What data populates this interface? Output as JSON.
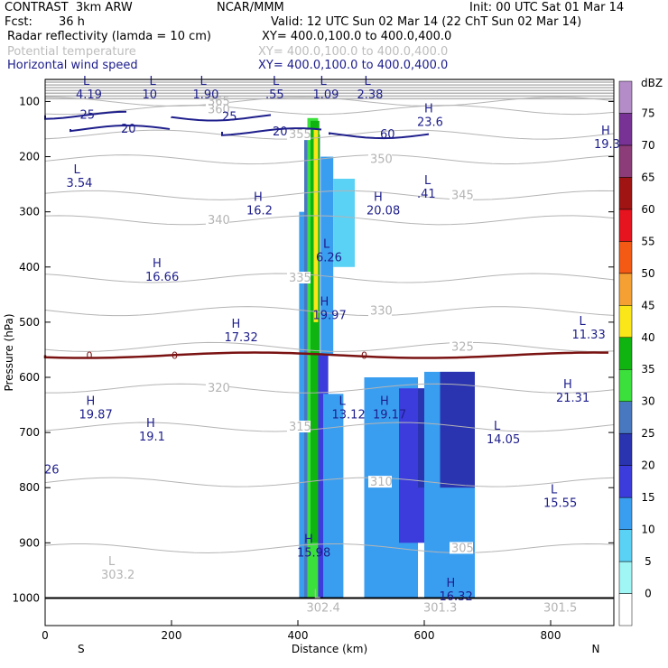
{
  "header": {
    "left_line1": "CONTRAST  3km ARW",
    "center_line1": "NCAR/MMM",
    "right_line1": "Init: 00 UTC Sat 01 Mar 14",
    "fcst_label": "Fcst:",
    "fcst_value": "36 h",
    "valid": "Valid: 12 UTC Sun 02 Mar 14 (22 ChT Sun 02 Mar 14)",
    "field1": "Radar reflectivity (lamda = 10 cm)",
    "field1_xy": "XY= 400.0,100.0 to 400.0,400.0",
    "field2": "Potential temperature",
    "field2_xy": "XY= 400.0,100.0 to 400.0,400.0",
    "field3": "Horizontal wind speed",
    "field3_xy": "XY= 400.0,100.0 to 400.0,400.0"
  },
  "colors": {
    "theta": "#b4b4b4",
    "wind": "#1e1e8c",
    "freezing": "#7a1212"
  },
  "chart_data": {
    "type": "heatmap",
    "title": "Radar reflectivity (lamda = 10 cm)",
    "xlabel": "Distance (km)",
    "ylabel": "Pressure (hPa)",
    "xlim": [
      0,
      900
    ],
    "ylim": [
      1050,
      60
    ],
    "x_ticks": [
      0,
      200,
      400,
      600,
      800
    ],
    "y_ticks": [
      100,
      200,
      300,
      400,
      500,
      600,
      700,
      800,
      900,
      1000
    ],
    "x_end_labels": {
      "left": "S",
      "right": "N"
    },
    "colorbar": {
      "unit": "dBZ",
      "levels": [
        0,
        5,
        10,
        15,
        20,
        25,
        30,
        35,
        40,
        45,
        50,
        55,
        60,
        65,
        70,
        75
      ],
      "colors": [
        "#ffffff",
        "#a0f5f5",
        "#5ad2f5",
        "#3a9ef0",
        "#3c3cdc",
        "#2a34b0",
        "#4878c0",
        "#3ce03c",
        "#10b410",
        "#fae619",
        "#f5a032",
        "#f55a14",
        "#e6141e",
        "#a01414",
        "#8c3c78",
        "#783296",
        "#b48cc8"
      ]
    },
    "cells": [
      {
        "x0": 402,
        "x1": 418,
        "p0": 1000,
        "p1": 300,
        "dbz": 12
      },
      {
        "x0": 410,
        "x1": 435,
        "p0": 1000,
        "p1": 160,
        "dbz": 25
      },
      {
        "x0": 415,
        "x1": 432,
        "p0": 1000,
        "p1": 130,
        "dbz": 30
      },
      {
        "x0": 420,
        "x1": 434,
        "p0": 900,
        "p1": 135,
        "dbz": 35
      },
      {
        "x0": 425,
        "x1": 432,
        "p0": 500,
        "p1": 150,
        "dbz": 40
      },
      {
        "x0": 436,
        "x1": 456,
        "p0": 560,
        "p1": 200,
        "dbz": 10
      },
      {
        "x0": 456,
        "x1": 490,
        "p0": 400,
        "p1": 240,
        "dbz": 8
      },
      {
        "x0": 432,
        "x1": 448,
        "p0": 1000,
        "p1": 560,
        "dbz": 15
      },
      {
        "x0": 440,
        "x1": 472,
        "p0": 1000,
        "p1": 630,
        "dbz": 12
      },
      {
        "x0": 505,
        "x1": 530,
        "p0": 1000,
        "p1": 600,
        "dbz": 10
      },
      {
        "x0": 530,
        "x1": 590,
        "p0": 1000,
        "p1": 600,
        "dbz": 12
      },
      {
        "x0": 560,
        "x1": 640,
        "p0": 900,
        "p1": 620,
        "dbz": 18
      },
      {
        "x0": 590,
        "x1": 620,
        "p0": 800,
        "p1": 620,
        "dbz": 22
      },
      {
        "x0": 600,
        "x1": 680,
        "p0": 1000,
        "p1": 590,
        "dbz": 10
      },
      {
        "x0": 625,
        "x1": 680,
        "p0": 800,
        "p1": 590,
        "dbz": 20
      }
    ],
    "freezing_level": {
      "label": "0",
      "pressure": 560
    },
    "theta_contours": [
      {
        "label": "360",
        "p": 115
      },
      {
        "label": "355",
        "p": 160
      },
      {
        "label": "350",
        "p": 205
      },
      {
        "label": "345",
        "p": 270
      },
      {
        "label": "340",
        "p": 315
      },
      {
        "label": "335",
        "p": 420
      },
      {
        "label": "330",
        "p": 480
      },
      {
        "label": "325",
        "p": 545
      },
      {
        "label": "320",
        "p": 620
      },
      {
        "label": "315",
        "p": 690
      },
      {
        "label": "310",
        "p": 790
      },
      {
        "label": "305",
        "p": 910
      },
      {
        "label": "365",
        "p": 100
      }
    ],
    "wind_labels": [
      {
        "label": "L",
        "value": "4.19",
        "x": 60,
        "p": 70
      },
      {
        "label": "L",
        "value": "10",
        "x": 165,
        "p": 70
      },
      {
        "label": "L",
        "value": "1.90",
        "x": 245,
        "p": 70
      },
      {
        "label": "L",
        "value": ".55",
        "x": 360,
        "p": 70
      },
      {
        "label": "L",
        "value": "1.09",
        "x": 435,
        "p": 70
      },
      {
        "label": "L",
        "value": "2.38",
        "x": 505,
        "p": 70
      },
      {
        "label": "H",
        "value": "23.6",
        "x": 600,
        "p": 120
      },
      {
        "label": "H",
        "value": "19.3",
        "x": 880,
        "p": 160
      },
      {
        "label": "L",
        "value": "3.54",
        "x": 45,
        "p": 230
      },
      {
        "label": "H",
        "value": "16.2",
        "x": 330,
        "p": 280
      },
      {
        "label": "L",
        "value": ".41",
        "x": 600,
        "p": 250
      },
      {
        "label": "H",
        "value": "20.08",
        "x": 520,
        "p": 280
      },
      {
        "label": "L",
        "value": "6.26",
        "x": 440,
        "p": 365
      },
      {
        "label": "H",
        "value": "16.66",
        "x": 170,
        "p": 400
      },
      {
        "label": "H",
        "value": "19.97",
        "x": 435,
        "p": 470
      },
      {
        "label": "H",
        "value": "17.32",
        "x": 295,
        "p": 510
      },
      {
        "label": "L",
        "value": "11.33",
        "x": 845,
        "p": 505
      },
      {
        "label": "H",
        "value": "21.31",
        "x": 820,
        "p": 620
      },
      {
        "label": "H",
        "value": "19.87",
        "x": 65,
        "p": 650
      },
      {
        "label": "L",
        "value": "13.12",
        "x": 465,
        "p": 650
      },
      {
        "label": "H",
        "value": "19.17",
        "x": 530,
        "p": 650
      },
      {
        "label": "H",
        "value": "19.1",
        "x": 160,
        "p": 690
      },
      {
        "label": "L",
        "value": "14.05",
        "x": 710,
        "p": 695
      },
      {
        "label": "",
        "value": "26",
        "x": 10,
        "p": 750
      },
      {
        "label": "L",
        "value": "15.55",
        "x": 800,
        "p": 810
      },
      {
        "label": "H",
        "value": "15.98",
        "x": 410,
        "p": 900
      },
      {
        "label": "H",
        "value": "16.32",
        "x": 635,
        "p": 980
      },
      {
        "label": "L",
        "value": "303.2",
        "x": 100,
        "p": 940,
        "gray": true
      },
      {
        "label": "L",
        "value": "302.4",
        "x": 425,
        "p": 1000,
        "gray": true
      },
      {
        "label": "",
        "value": "301.3",
        "x": 610,
        "p": 1000,
        "gray": true
      },
      {
        "label": "",
        "value": "301.5",
        "x": 800,
        "p": 1000,
        "gray": true
      }
    ],
    "wind_contour_labels": [
      {
        "value": "25",
        "x": 55,
        "p": 125
      },
      {
        "value": "20",
        "x": 120,
        "p": 150
      },
      {
        "value": "25",
        "x": 280,
        "p": 128
      },
      {
        "value": "20",
        "x": 360,
        "p": 155
      },
      {
        "value": "60",
        "x": 530,
        "p": 160
      }
    ]
  }
}
